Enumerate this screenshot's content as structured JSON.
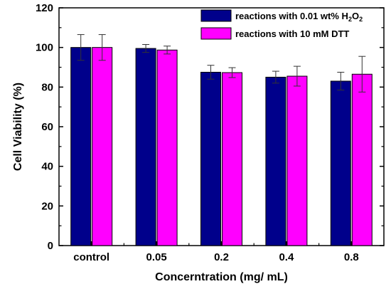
{
  "chart_data": {
    "type": "bar",
    "title": "",
    "xlabel": "Concerntration (mg/ mL)",
    "ylabel": "Cell Viability (%)",
    "ylim": [
      0,
      120
    ],
    "yticks": [
      "0",
      "20",
      "40",
      "60",
      "80",
      "100",
      "120"
    ],
    "categories": [
      "control",
      "0.05",
      "0.2",
      "0.4",
      "0.8"
    ],
    "legend_position": "top-right",
    "grid": false,
    "series": [
      {
        "name": "reactions with 0.01 wt% H2O2",
        "color": "#00008b",
        "values": [
          100,
          99.5,
          87.5,
          85,
          83
        ],
        "errors": [
          6.5,
          2,
          3.5,
          3,
          4.5
        ]
      },
      {
        "name": "reactions with 10 mM DTT",
        "color": "#ff00ff",
        "values": [
          100,
          98.7,
          87.3,
          85.5,
          86.5
        ],
        "errors": [
          6.5,
          2,
          2.5,
          5,
          9
        ]
      }
    ]
  }
}
